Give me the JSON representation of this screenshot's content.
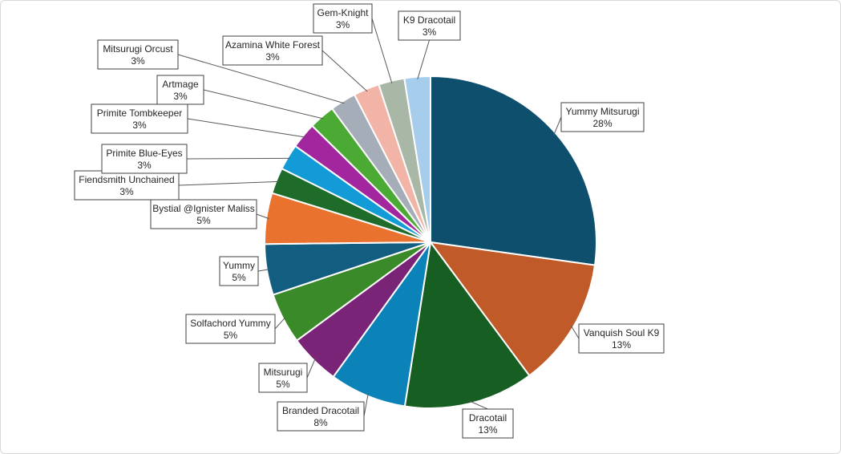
{
  "chart_data": {
    "type": "pie",
    "title": "",
    "start_angle_deg": 0,
    "direction": "clockwise",
    "slices": [
      {
        "label": "Yummy Mitsurugi",
        "pct_label": "28%",
        "value": 28,
        "color": "#0e4f6e"
      },
      {
        "label": "Vanquish Soul K9",
        "pct_label": "13%",
        "value": 13,
        "color": "#c05a28"
      },
      {
        "label": "Dracotail",
        "pct_label": "13%",
        "value": 13,
        "color": "#175e22"
      },
      {
        "label": "Branded Dracotail",
        "pct_label": "8%",
        "value": 7.7,
        "color": "#0b82b8"
      },
      {
        "label": "Mitsurugi",
        "pct_label": "5%",
        "value": 5.1,
        "color": "#7a2478"
      },
      {
        "label": "Solfachord Yummy",
        "pct_label": "5%",
        "value": 5.1,
        "color": "#3b8a2a"
      },
      {
        "label": "Yummy",
        "pct_label": "5%",
        "value": 5.1,
        "color": "#135d80"
      },
      {
        "label": "Bystial @Ignister Maliss",
        "pct_label": "5%",
        "value": 5.1,
        "color": "#e8722e"
      },
      {
        "label": "Fiendsmith Unchained",
        "pct_label": "3%",
        "value": 2.6,
        "color": "#1f6b2a"
      },
      {
        "label": "Primite Blue-Eyes",
        "pct_label": "3%",
        "value": 2.6,
        "color": "#129bd6"
      },
      {
        "label": "Primite Tombkeeper",
        "pct_label": "3%",
        "value": 2.6,
        "color": "#a2279e"
      },
      {
        "label": "Artmage",
        "pct_label": "3%",
        "value": 2.6,
        "color": "#4aaa33"
      },
      {
        "label": "Mitsurugi Orcust",
        "pct_label": "3%",
        "value": 2.6,
        "color": "#a5adb8"
      },
      {
        "label": "Azamina White Forest",
        "pct_label": "3%",
        "value": 2.6,
        "color": "#f2b4a6"
      },
      {
        "label": "Gem-Knight",
        "pct_label": "3%",
        "value": 2.6,
        "color": "#a8b7a6"
      },
      {
        "label": "K9 Dracotail",
        "pct_label": "3%",
        "value": 2.6,
        "color": "#a7cdec"
      }
    ],
    "legend": "none",
    "data_labels": "callouts"
  }
}
